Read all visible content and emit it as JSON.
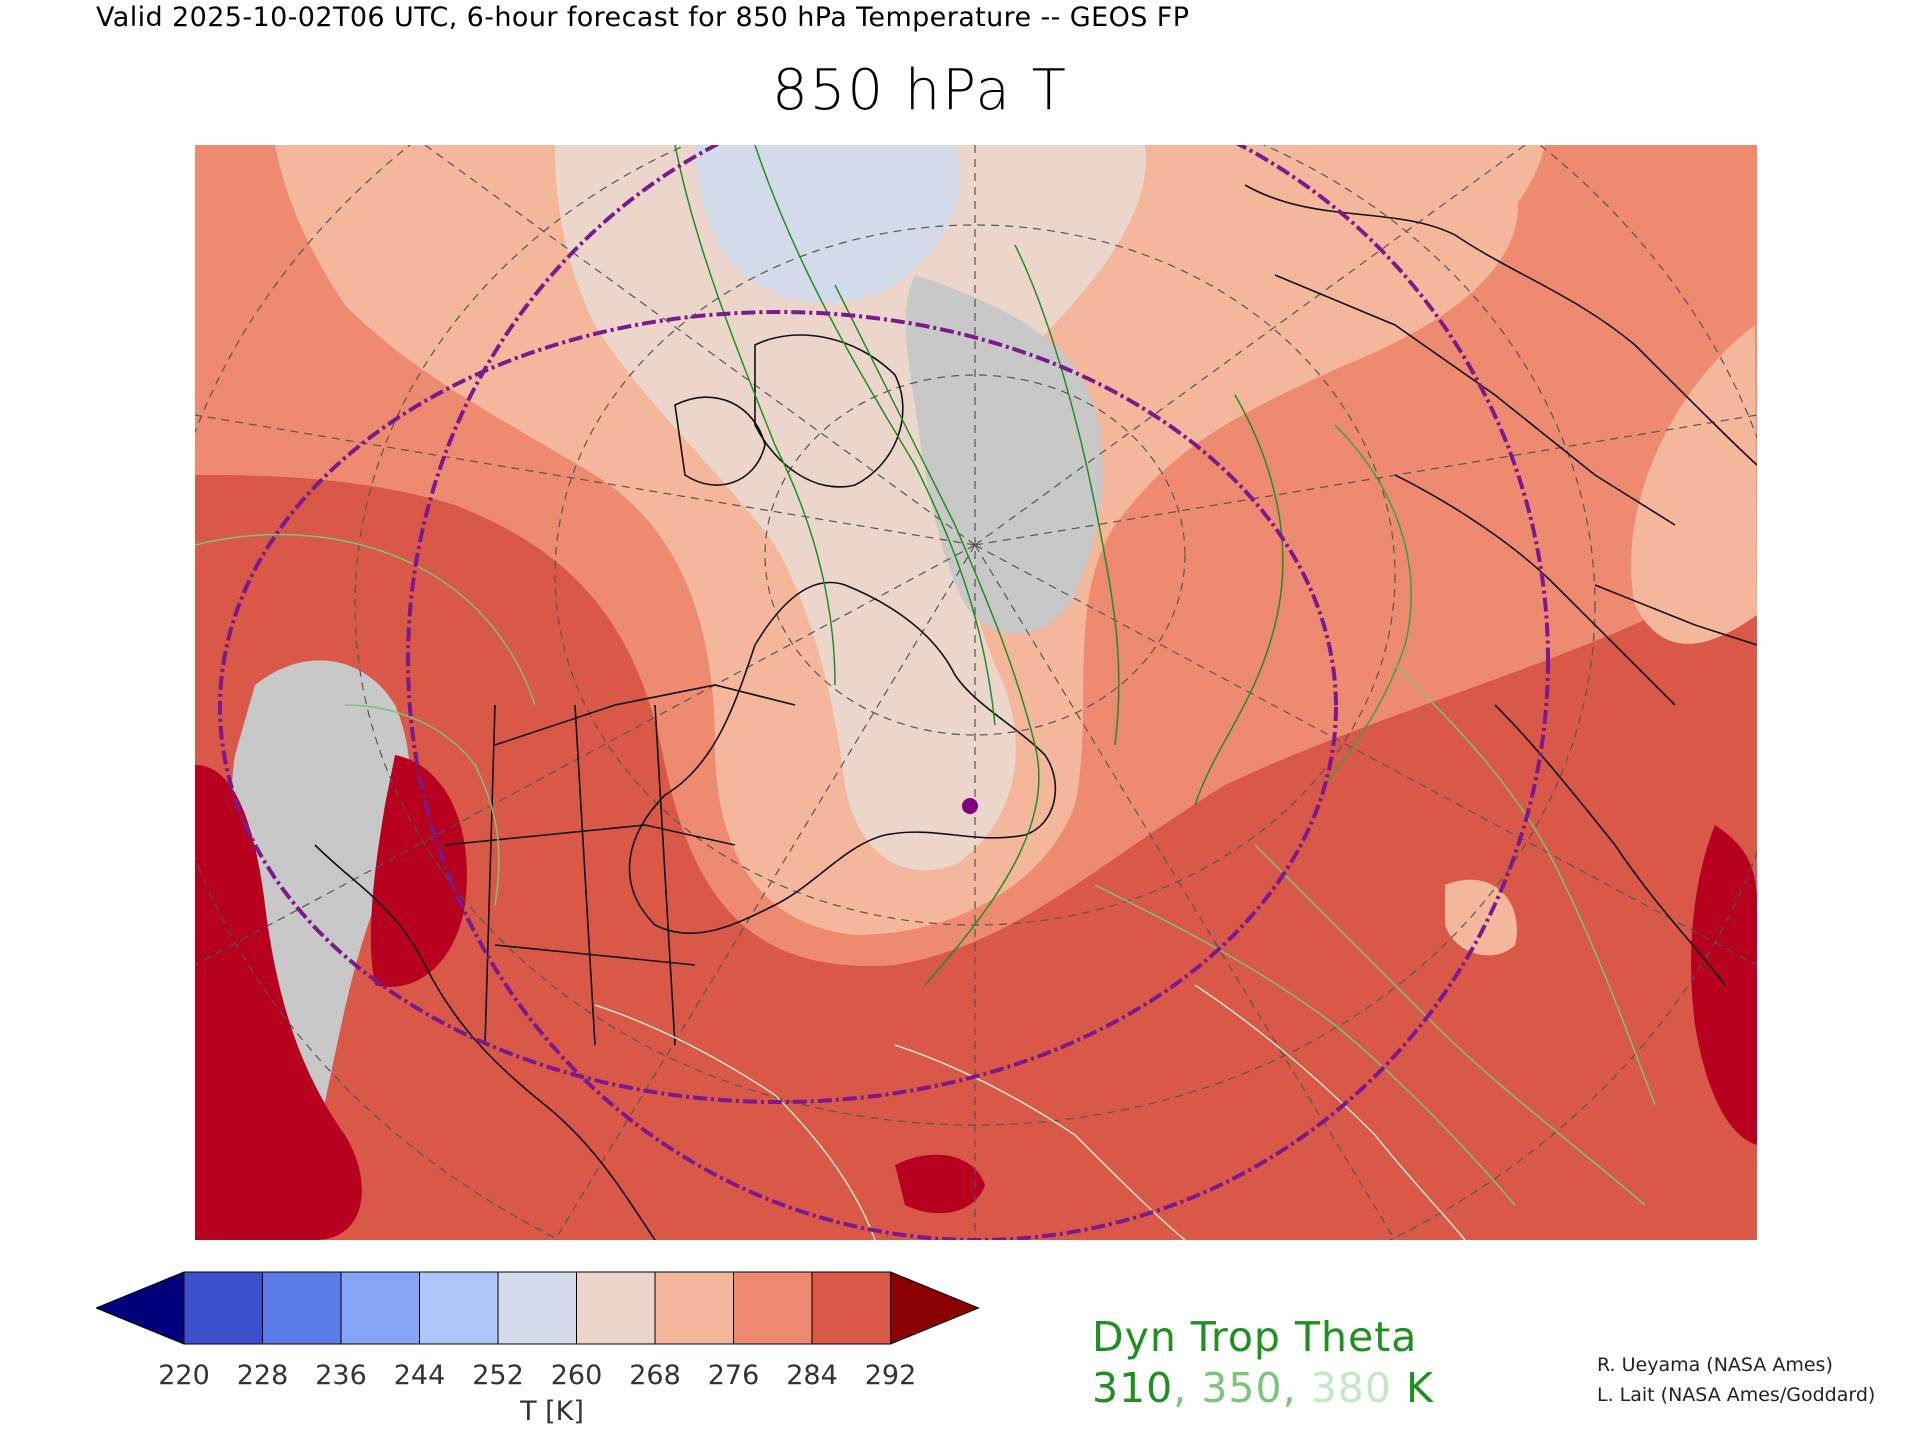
{
  "header": {
    "valid_line": "Valid 2025-10-02T06 UTC, 6-hour forecast for 850 hPa Temperature -- GEOS FP",
    "title": "850 hPa T"
  },
  "colorbar": {
    "ticks": [
      "220",
      "228",
      "236",
      "244",
      "252",
      "260",
      "268",
      "276",
      "284",
      "292"
    ],
    "label": "T [K]",
    "under_color": "#00007d",
    "over_color": "#8b0000",
    "colors": [
      "#3a4fc9",
      "#5b7be8",
      "#85a6f7",
      "#adc7fb",
      "#d3daea",
      "#ecd6cb",
      "#f4b79c",
      "#ee8a6f",
      "#d95847"
    ]
  },
  "tropopause": {
    "title": "Dyn Trop Theta",
    "levels": [
      {
        "value": "310",
        "color": "#1f8f1f"
      },
      {
        "value": "350",
        "color": "#7bc47b"
      },
      {
        "value": "380",
        "color": "#c4e8c4"
      }
    ],
    "separator": ", ",
    "unit": " K"
  },
  "credits": [
    "R. Ueyama (NASA Ames)",
    "L. Lait (NASA Ames/Goddard)"
  ],
  "map": {
    "projection_marker_color": "#800080",
    "ring_color": "#7a1a8c"
  }
}
